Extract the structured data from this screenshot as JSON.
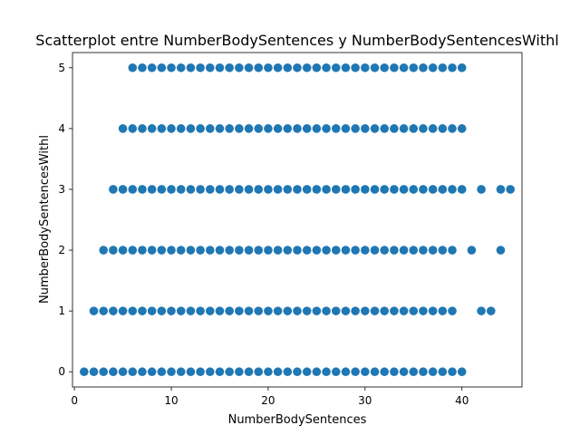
{
  "chart_data": {
    "type": "scatter",
    "title": "Scatterplot entre NumberBodySentences y NumberBodySentencesWithl",
    "xlabel": "NumberBodySentences",
    "ylabel": "NumberBodySentencesWithl",
    "xlim": [
      -0.2,
      46.2
    ],
    "ylim": [
      -0.25,
      5.25
    ],
    "xticks": [
      0,
      10,
      20,
      30,
      40
    ],
    "yticks": [
      0,
      1,
      2,
      3,
      4,
      5
    ],
    "grid": false,
    "marker_color": "#1f77b4",
    "series": [
      {
        "points": [
          [
            1,
            0
          ],
          [
            2,
            0
          ],
          [
            3,
            0
          ],
          [
            4,
            0
          ],
          [
            5,
            0
          ],
          [
            6,
            0
          ],
          [
            7,
            0
          ],
          [
            8,
            0
          ],
          [
            9,
            0
          ],
          [
            10,
            0
          ],
          [
            11,
            0
          ],
          [
            12,
            0
          ],
          [
            13,
            0
          ],
          [
            14,
            0
          ],
          [
            15,
            0
          ],
          [
            16,
            0
          ],
          [
            17,
            0
          ],
          [
            18,
            0
          ],
          [
            19,
            0
          ],
          [
            20,
            0
          ],
          [
            21,
            0
          ],
          [
            22,
            0
          ],
          [
            23,
            0
          ],
          [
            24,
            0
          ],
          [
            25,
            0
          ],
          [
            26,
            0
          ],
          [
            27,
            0
          ],
          [
            28,
            0
          ],
          [
            29,
            0
          ],
          [
            30,
            0
          ],
          [
            31,
            0
          ],
          [
            32,
            0
          ],
          [
            33,
            0
          ],
          [
            34,
            0
          ],
          [
            35,
            0
          ],
          [
            36,
            0
          ],
          [
            37,
            0
          ],
          [
            38,
            0
          ],
          [
            39,
            0
          ],
          [
            40,
            0
          ],
          [
            2,
            1
          ],
          [
            3,
            1
          ],
          [
            4,
            1
          ],
          [
            5,
            1
          ],
          [
            6,
            1
          ],
          [
            7,
            1
          ],
          [
            8,
            1
          ],
          [
            9,
            1
          ],
          [
            10,
            1
          ],
          [
            11,
            1
          ],
          [
            12,
            1
          ],
          [
            13,
            1
          ],
          [
            14,
            1
          ],
          [
            15,
            1
          ],
          [
            16,
            1
          ],
          [
            17,
            1
          ],
          [
            18,
            1
          ],
          [
            19,
            1
          ],
          [
            20,
            1
          ],
          [
            21,
            1
          ],
          [
            22,
            1
          ],
          [
            23,
            1
          ],
          [
            24,
            1
          ],
          [
            25,
            1
          ],
          [
            26,
            1
          ],
          [
            27,
            1
          ],
          [
            28,
            1
          ],
          [
            29,
            1
          ],
          [
            30,
            1
          ],
          [
            31,
            1
          ],
          [
            32,
            1
          ],
          [
            33,
            1
          ],
          [
            34,
            1
          ],
          [
            35,
            1
          ],
          [
            36,
            1
          ],
          [
            37,
            1
          ],
          [
            38,
            1
          ],
          [
            39,
            1
          ],
          [
            42,
            1
          ],
          [
            43,
            1
          ],
          [
            3,
            2
          ],
          [
            4,
            2
          ],
          [
            5,
            2
          ],
          [
            6,
            2
          ],
          [
            7,
            2
          ],
          [
            8,
            2
          ],
          [
            9,
            2
          ],
          [
            10,
            2
          ],
          [
            11,
            2
          ],
          [
            12,
            2
          ],
          [
            13,
            2
          ],
          [
            14,
            2
          ],
          [
            15,
            2
          ],
          [
            16,
            2
          ],
          [
            17,
            2
          ],
          [
            18,
            2
          ],
          [
            19,
            2
          ],
          [
            20,
            2
          ],
          [
            21,
            2
          ],
          [
            22,
            2
          ],
          [
            23,
            2
          ],
          [
            24,
            2
          ],
          [
            25,
            2
          ],
          [
            26,
            2
          ],
          [
            27,
            2
          ],
          [
            28,
            2
          ],
          [
            29,
            2
          ],
          [
            30,
            2
          ],
          [
            31,
            2
          ],
          [
            32,
            2
          ],
          [
            33,
            2
          ],
          [
            34,
            2
          ],
          [
            35,
            2
          ],
          [
            36,
            2
          ],
          [
            37,
            2
          ],
          [
            38,
            2
          ],
          [
            39,
            2
          ],
          [
            41,
            2
          ],
          [
            44,
            2
          ],
          [
            4,
            3
          ],
          [
            5,
            3
          ],
          [
            6,
            3
          ],
          [
            7,
            3
          ],
          [
            8,
            3
          ],
          [
            9,
            3
          ],
          [
            10,
            3
          ],
          [
            11,
            3
          ],
          [
            12,
            3
          ],
          [
            13,
            3
          ],
          [
            14,
            3
          ],
          [
            15,
            3
          ],
          [
            16,
            3
          ],
          [
            17,
            3
          ],
          [
            18,
            3
          ],
          [
            19,
            3
          ],
          [
            20,
            3
          ],
          [
            21,
            3
          ],
          [
            22,
            3
          ],
          [
            23,
            3
          ],
          [
            24,
            3
          ],
          [
            25,
            3
          ],
          [
            26,
            3
          ],
          [
            27,
            3
          ],
          [
            28,
            3
          ],
          [
            29,
            3
          ],
          [
            30,
            3
          ],
          [
            31,
            3
          ],
          [
            32,
            3
          ],
          [
            33,
            3
          ],
          [
            34,
            3
          ],
          [
            35,
            3
          ],
          [
            36,
            3
          ],
          [
            37,
            3
          ],
          [
            38,
            3
          ],
          [
            39,
            3
          ],
          [
            40,
            3
          ],
          [
            42,
            3
          ],
          [
            44,
            3
          ],
          [
            45,
            3
          ],
          [
            5,
            4
          ],
          [
            6,
            4
          ],
          [
            7,
            4
          ],
          [
            8,
            4
          ],
          [
            9,
            4
          ],
          [
            10,
            4
          ],
          [
            11,
            4
          ],
          [
            12,
            4
          ],
          [
            13,
            4
          ],
          [
            14,
            4
          ],
          [
            15,
            4
          ],
          [
            16,
            4
          ],
          [
            17,
            4
          ],
          [
            18,
            4
          ],
          [
            19,
            4
          ],
          [
            20,
            4
          ],
          [
            21,
            4
          ],
          [
            22,
            4
          ],
          [
            23,
            4
          ],
          [
            24,
            4
          ],
          [
            25,
            4
          ],
          [
            26,
            4
          ],
          [
            27,
            4
          ],
          [
            28,
            4
          ],
          [
            29,
            4
          ],
          [
            30,
            4
          ],
          [
            31,
            4
          ],
          [
            32,
            4
          ],
          [
            33,
            4
          ],
          [
            34,
            4
          ],
          [
            35,
            4
          ],
          [
            36,
            4
          ],
          [
            37,
            4
          ],
          [
            38,
            4
          ],
          [
            39,
            4
          ],
          [
            40,
            4
          ],
          [
            6,
            5
          ],
          [
            7,
            5
          ],
          [
            8,
            5
          ],
          [
            9,
            5
          ],
          [
            10,
            5
          ],
          [
            11,
            5
          ],
          [
            12,
            5
          ],
          [
            13,
            5
          ],
          [
            14,
            5
          ],
          [
            15,
            5
          ],
          [
            16,
            5
          ],
          [
            17,
            5
          ],
          [
            18,
            5
          ],
          [
            19,
            5
          ],
          [
            20,
            5
          ],
          [
            21,
            5
          ],
          [
            22,
            5
          ],
          [
            23,
            5
          ],
          [
            24,
            5
          ],
          [
            25,
            5
          ],
          [
            26,
            5
          ],
          [
            27,
            5
          ],
          [
            28,
            5
          ],
          [
            29,
            5
          ],
          [
            30,
            5
          ],
          [
            31,
            5
          ],
          [
            32,
            5
          ],
          [
            33,
            5
          ],
          [
            34,
            5
          ],
          [
            35,
            5
          ],
          [
            36,
            5
          ],
          [
            37,
            5
          ],
          [
            38,
            5
          ],
          [
            39,
            5
          ],
          [
            40,
            5
          ]
        ]
      }
    ]
  }
}
